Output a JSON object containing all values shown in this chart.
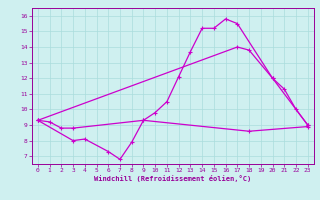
{
  "line1_x": [
    0,
    1,
    2,
    3,
    9,
    10,
    11,
    12,
    13,
    14,
    15,
    16,
    17,
    20,
    21,
    22,
    23
  ],
  "line1_y": [
    9.3,
    9.2,
    8.8,
    8.8,
    9.3,
    9.8,
    10.5,
    12.1,
    13.7,
    15.2,
    15.2,
    15.8,
    15.5,
    12.0,
    11.3,
    10.0,
    9.0
  ],
  "line2_x": [
    0,
    17,
    18,
    20,
    23
  ],
  "line2_y": [
    9.3,
    14.0,
    13.8,
    12.0,
    9.0
  ],
  "line3_x": [
    0,
    3,
    4,
    6,
    7,
    8,
    9,
    18,
    23
  ],
  "line3_y": [
    9.3,
    8.0,
    8.1,
    7.3,
    6.8,
    7.9,
    9.3,
    8.6,
    8.9
  ],
  "bg_color": "#cff0f0",
  "grid_color": "#aadddd",
  "line_color": "#cc00cc",
  "xlabel": "Windchill (Refroidissement éolien,°C)",
  "xlim": [
    -0.5,
    23.5
  ],
  "ylim": [
    6.5,
    16.5
  ],
  "yticks": [
    7,
    8,
    9,
    10,
    11,
    12,
    13,
    14,
    15,
    16
  ],
  "xticks": [
    0,
    1,
    2,
    3,
    4,
    5,
    6,
    7,
    8,
    9,
    10,
    11,
    12,
    13,
    14,
    15,
    16,
    17,
    18,
    19,
    20,
    21,
    22,
    23
  ],
  "tick_color": "#990099",
  "spine_color": "#990099"
}
